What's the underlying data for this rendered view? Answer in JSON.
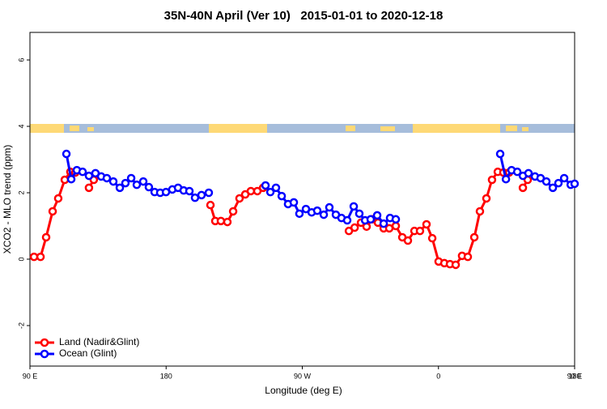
{
  "chart_data": {
    "type": "line",
    "title": "35N-40N April (Ver 10)   2015-01-01 to 2020-12-18",
    "xlabel": "Longitude (deg E)",
    "ylabel": "XCO2 - MLO trend (ppm)",
    "xlim": [
      90,
      450
    ],
    "ylim": [
      -3.22,
      6.83
    ],
    "xticks": [
      {
        "value": 90,
        "label": "90 E"
      },
      180,
      {
        "value": 270,
        "label": "90 W"
      },
      {
        "value": 360,
        "label": "0"
      },
      {
        "value": 450,
        "label": "90 E"
      },
      {
        "value": 540,
        "label": "180"
      }
    ],
    "yticks": [
      -2,
      0,
      2,
      4,
      6
    ],
    "legend": "bottom-left",
    "series": [
      {
        "name": "Land (Nadir&Glint)",
        "color": "#ff0000",
        "x": [
          92.7,
          97.0,
          100.7,
          105.0,
          108.7,
          113.0,
          116.7,
          120.0,
          null,
          129.0,
          132.2,
          null,
          209.3,
          212.5,
          216.2,
          220.5,
          224.3,
          228.5,
          232.3,
          236.0,
          240.3,
          244.1,
          null,
          300.8,
          304.6,
          308.8,
          312.5,
          316.3,
          320.0,
          323.8,
          327.5,
          331.8,
          336.1,
          339.8,
          344.1,
          347.8,
          352.1,
          355.9,
          360.1,
          363.9,
          367.6,
          371.4,
          375.6,
          379.4,
          383.7,
          387.4,
          391.7,
          395.4,
          399.2,
          402.9,
          406.7,
          null,
          415.8,
          419.0
        ],
        "values": [
          0.07,
          0.07,
          0.66,
          1.44,
          1.83,
          2.39,
          2.63,
          2.61,
          null,
          2.15,
          2.39,
          null,
          1.63,
          1.15,
          1.15,
          1.12,
          1.44,
          1.83,
          1.95,
          2.05,
          2.05,
          2.15,
          null,
          0.85,
          0.95,
          1.1,
          0.98,
          1.2,
          1.1,
          0.93,
          0.93,
          1.0,
          0.66,
          0.56,
          0.85,
          0.85,
          1.05,
          0.63,
          -0.07,
          -0.12,
          -0.15,
          -0.17,
          0.1,
          0.07,
          0.66,
          1.44,
          1.83,
          2.39,
          2.63,
          2.61,
          2.61,
          null,
          2.15,
          2.39
        ]
      },
      {
        "name": "Ocean (Glint)",
        "color": "#0000ff",
        "x": [
          114.1,
          117.3,
          121.0,
          124.8,
          129.0,
          133.3,
          137.1,
          140.8,
          145.1,
          149.4,
          153.1,
          156.9,
          160.6,
          164.9,
          168.6,
          172.4,
          176.1,
          179.9,
          184.1,
          187.9,
          191.6,
          195.4,
          199.1,
          203.4,
          208.2,
          null,
          245.7,
          248.9,
          252.6,
          256.4,
          260.6,
          264.4,
          268.1,
          272.4,
          276.2,
          279.9,
          284.2,
          287.9,
          292.2,
          295.9,
          299.7,
          304.0,
          307.7,
          311.5,
          315.2,
          319.5,
          323.8,
          328.0,
          331.8,
          null,
          400.8,
          404.6,
          408.3,
          412.1,
          415.8,
          419.5,
          423.8,
          427.5,
          431.3,
          435.6,
          439.3,
          443.1,
          447.4,
          450.0
        ],
        "values": [
          3.17,
          2.41,
          2.68,
          2.63,
          2.51,
          2.59,
          2.49,
          2.44,
          2.34,
          2.15,
          2.29,
          2.44,
          2.24,
          2.34,
          2.17,
          2.02,
          2.0,
          2.02,
          2.1,
          2.15,
          2.07,
          2.05,
          1.85,
          1.93,
          2.0,
          null,
          2.22,
          2.02,
          2.15,
          1.9,
          1.66,
          1.71,
          1.37,
          1.51,
          1.41,
          1.46,
          1.34,
          1.56,
          1.34,
          1.24,
          1.17,
          1.59,
          1.37,
          1.17,
          1.2,
          1.32,
          1.07,
          1.24,
          1.2,
          null,
          3.17,
          2.41,
          2.68,
          2.63,
          2.51,
          2.59,
          2.49,
          2.44,
          2.34,
          2.15,
          2.29,
          2.44,
          2.24,
          2.27
        ]
      }
    ]
  }
}
